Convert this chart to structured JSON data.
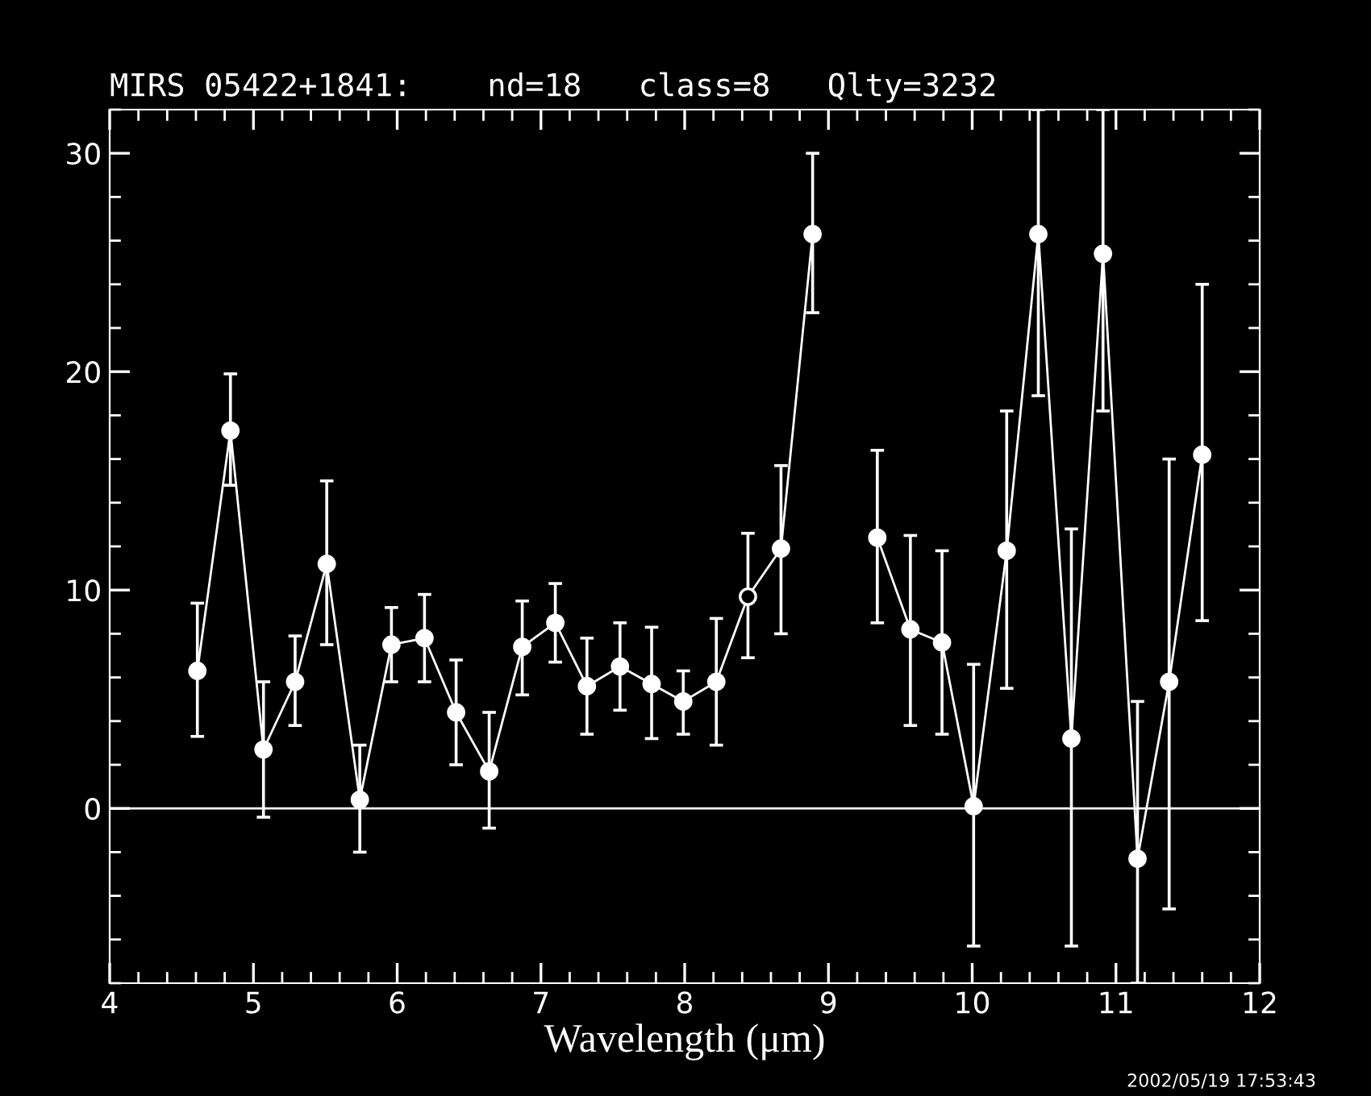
{
  "chart_data": {
    "type": "line",
    "title": "MIRS 05422+1841:    nd=18   class=8   Qlty=3232",
    "xlabel": "Wavelength (μm)",
    "annotations": [
      "2002/05/19 17:53:43"
    ],
    "series": [
      {
        "color": "#ffffff",
        "marker": "circle",
        "line_style": "solid",
        "x": [
          4.61,
          4.84,
          5.07,
          5.29,
          5.51,
          5.74,
          5.96,
          6.19,
          6.41,
          6.64,
          6.87,
          7.1,
          7.32,
          7.55,
          7.77,
          7.99,
          8.22,
          8.44,
          8.67,
          8.89,
          9.12,
          9.34,
          9.57,
          9.79,
          10.01,
          10.24,
          10.46,
          10.69,
          10.91,
          11.15,
          11.37,
          11.6
        ],
        "values": [
          6.3,
          17.3,
          2.7,
          5.8,
          11.2,
          0.4,
          7.5,
          7.8,
          4.4,
          1.7,
          7.4,
          8.5,
          5.6,
          6.5,
          5.7,
          4.9,
          5.8,
          9.7,
          11.9,
          26.3,
          null,
          12.4,
          8.2,
          7.6,
          0.1,
          11.8,
          26.3,
          3.2,
          25.4,
          -2.3,
          5.8,
          16.2
        ],
        "colors": [
          "#ffffff",
          "#ffffff",
          "#ffffff",
          "#ffffff",
          "#ffffff",
          "#ffffff",
          "#ffffff",
          "#ffffff",
          "#ffffff",
          "#ffffff",
          "#ffffff",
          "#ffffff",
          "#ffffff",
          "#ffffff",
          "#ffffff",
          "#ffffff",
          "#ffffff",
          "#000000",
          "#ffffff",
          "#ffffff",
          null,
          "#ffffff",
          "#ffffff",
          "#ffffff",
          "#ffffff",
          "#ffffff",
          "#ffffff",
          "#ffffff",
          "#ffffff",
          "#ffffff",
          "#ffffff",
          "#ffffff"
        ],
        "errors": [
          [
            3.3,
            9.4
          ],
          [
            14.8,
            19.9
          ],
          [
            -0.4,
            5.8
          ],
          [
            3.8,
            7.9
          ],
          [
            7.5,
            15.0
          ],
          [
            -2.0,
            2.9
          ],
          [
            5.8,
            9.2
          ],
          [
            5.8,
            9.8
          ],
          [
            2.0,
            6.8
          ],
          [
            -0.9,
            4.4
          ],
          [
            5.2,
            9.5
          ],
          [
            6.7,
            10.3
          ],
          [
            3.4,
            7.8
          ],
          [
            4.5,
            8.5
          ],
          [
            3.2,
            8.3
          ],
          [
            3.4,
            6.3
          ],
          [
            2.9,
            8.7
          ],
          [
            6.9,
            12.6
          ],
          [
            8.0,
            15.7
          ],
          [
            22.7,
            30.0
          ],
          null,
          [
            8.5,
            16.4
          ],
          [
            3.8,
            12.5
          ],
          [
            3.4,
            11.8
          ],
          [
            -6.3,
            6.6
          ],
          [
            5.5,
            18.2
          ],
          [
            18.9,
            32
          ],
          [
            -6.3,
            12.8
          ],
          [
            18.2,
            32
          ],
          [
            -8,
            4.9
          ],
          [
            -4.6,
            16.0
          ],
          [
            8.6,
            24.0
          ]
        ]
      }
    ],
    "xlim": [
      4,
      12
    ],
    "xticks": [
      4,
      5,
      6,
      7,
      8,
      9,
      10,
      11,
      12
    ],
    "ylim": [
      -8,
      32
    ],
    "yticks": [
      0,
      10,
      20,
      30
    ],
    "ref_lines": [
      {
        "axis": "y",
        "value": 0,
        "color": "#ffffff"
      }
    ],
    "grid": false,
    "legend": false
  }
}
